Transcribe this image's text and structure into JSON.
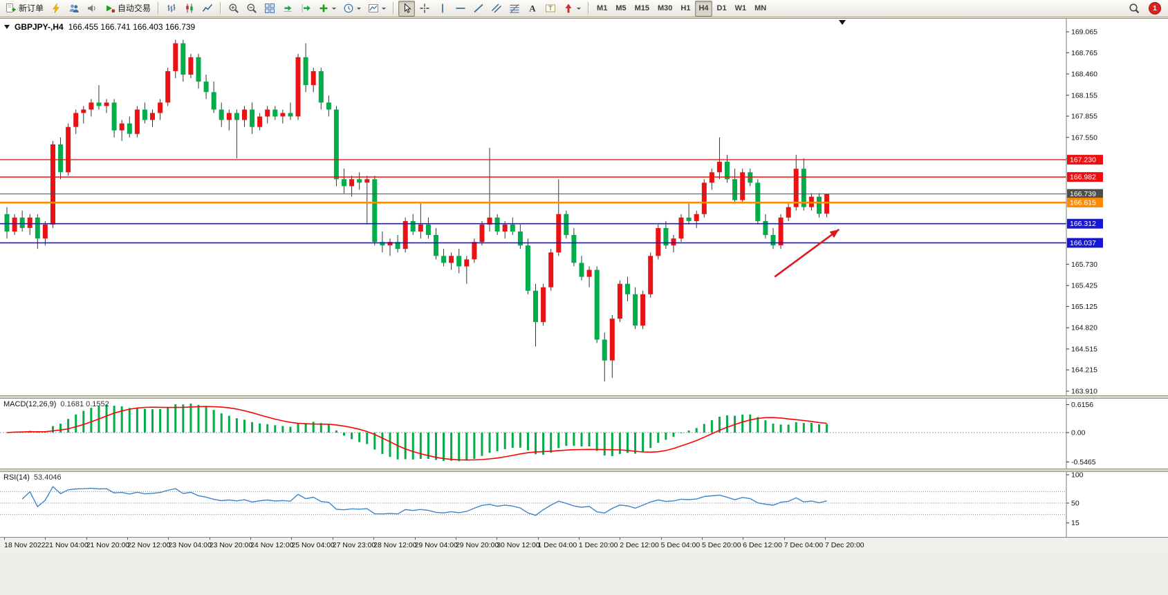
{
  "toolbar": {
    "groups": [
      {
        "name": "trade",
        "items": [
          {
            "name": "new-order-button",
            "icon": "new-order-icon",
            "label": "新订单"
          },
          {
            "name": "expert-advisors-button",
            "icon": "lightning-icon"
          },
          {
            "name": "profiles-button",
            "icon": "profiles-icon"
          },
          {
            "name": "alerts-button",
            "icon": "speaker-icon"
          },
          {
            "name": "auto-trading-button",
            "icon": "play-icon",
            "label": "自动交易"
          }
        ]
      },
      {
        "name": "chart-types",
        "items": [
          {
            "name": "bar-chart-button",
            "icon": "bar-chart-icon"
          },
          {
            "name": "candlestick-chart-button",
            "icon": "candle-chart-icon"
          },
          {
            "name": "line-chart-button",
            "icon": "line-chart-icon"
          }
        ]
      },
      {
        "name": "chart-tools",
        "items": [
          {
            "name": "zoom-in-button",
            "icon": "zoom-in-icon"
          },
          {
            "name": "zoom-out-button",
            "icon": "zoom-out-icon"
          },
          {
            "name": "tile-windows-button",
            "icon": "tile-windows-icon"
          },
          {
            "name": "auto-scroll-button",
            "icon": "auto-scroll-icon"
          },
          {
            "name": "chart-shift-button",
            "icon": "chart-shift-icon"
          },
          {
            "name": "indicators-button",
            "icon": "add-indicator-icon",
            "dropdown": true
          },
          {
            "name": "periods-button",
            "icon": "clock-icon",
            "dropdown": true
          },
          {
            "name": "templates-button",
            "icon": "template-icon",
            "dropdown": true
          }
        ]
      },
      {
        "name": "drawing-tools",
        "items": [
          {
            "name": "cursor-button",
            "icon": "cursor-icon",
            "active": true
          },
          {
            "name": "crosshair-button",
            "icon": "crosshair-icon"
          },
          {
            "name": "vertical-line-button",
            "icon": "vertical-line-icon"
          },
          {
            "name": "horizontal-line-button",
            "icon": "horizontal-line-icon"
          },
          {
            "name": "trendline-button",
            "icon": "trendline-icon"
          },
          {
            "name": "channel-button",
            "icon": "channel-icon"
          },
          {
            "name": "fibonacci-button",
            "icon": "fibonacci-icon"
          },
          {
            "name": "text-button",
            "icon": "text-icon"
          },
          {
            "name": "text-label-button",
            "icon": "text-label-icon"
          },
          {
            "name": "arrows-button",
            "icon": "arrow-icon",
            "dropdown": true
          }
        ]
      },
      {
        "name": "timeframes",
        "items": [
          {
            "name": "timeframe-m1-button",
            "label": "M1",
            "tf": true
          },
          {
            "name": "timeframe-m5-button",
            "label": "M5",
            "tf": true
          },
          {
            "name": "timeframe-m15-button",
            "label": "M15",
            "tf": true
          },
          {
            "name": "timeframe-m30-button",
            "label": "M30",
            "tf": true
          },
          {
            "name": "timeframe-h1-button",
            "label": "H1",
            "tf": true
          },
          {
            "name": "timeframe-h4-button",
            "label": "H4",
            "tf": true,
            "active": true
          },
          {
            "name": "timeframe-d1-button",
            "label": "D1",
            "tf": true
          },
          {
            "name": "timeframe-w1-button",
            "label": "W1",
            "tf": true
          },
          {
            "name": "timeframe-mn-button",
            "label": "MN",
            "tf": true
          }
        ]
      }
    ],
    "right_items": [
      {
        "name": "search-button",
        "icon": "search-icon"
      },
      {
        "name": "notification-badge",
        "label": "1",
        "badge": true
      }
    ]
  },
  "chart_data": [
    {
      "type": "candlestick",
      "title": "GBPJPY-,H4",
      "ohlc_text": "166.455 166.741 166.403 166.739",
      "open": "166.455",
      "high": "166.741",
      "low": "166.403",
      "close": "166.739",
      "y_axis": {
        "min": 163.91,
        "max": 169.065,
        "labels": [
          "169.065",
          "168.765",
          "168.460",
          "168.155",
          "167.855",
          "167.550",
          "167.245",
          "165.730",
          "165.425",
          "165.125",
          "164.820",
          "164.515",
          "164.215",
          "163.910"
        ]
      },
      "hlines": [
        {
          "price": 167.23,
          "label": "167.230",
          "color": "#ee1010",
          "width": 1.4
        },
        {
          "price": 166.982,
          "label": "166.982",
          "color": "#ee1010",
          "width": 1.4
        },
        {
          "price": 166.739,
          "label": "166.739",
          "color": "#4d4d4d",
          "width": 1,
          "role": "bid-price"
        },
        {
          "price": 166.615,
          "label": "166.615",
          "color": "#ff8c00",
          "width": 2.6
        },
        {
          "price": 166.312,
          "label": "166.312",
          "color": "#1616d8",
          "width": 1.6
        },
        {
          "price": 166.037,
          "label": "166.037",
          "color": "#1616d8",
          "width": 1.6
        }
      ],
      "colors": {
        "up": "#ea1212",
        "down": "#00ad48",
        "wick": "#333333"
      },
      "annotation_arrow": {
        "from_bar": 100.2,
        "from_price": 165.55,
        "to_bar": 108.6,
        "to_price": 166.23,
        "color": "#e01818"
      },
      "grid": false,
      "candles": [
        [
          166.45,
          166.55,
          166.1,
          166.2
        ],
        [
          166.2,
          166.45,
          166.15,
          166.4
        ],
        [
          166.4,
          166.5,
          166.2,
          166.25
        ],
        [
          166.25,
          166.45,
          166.15,
          166.4
        ],
        [
          166.4,
          166.45,
          165.95,
          166.1
        ],
        [
          166.1,
          166.35,
          166.0,
          166.3
        ],
        [
          166.3,
          167.5,
          166.25,
          167.45
        ],
        [
          167.45,
          167.55,
          166.95,
          167.05
        ],
        [
          167.05,
          167.75,
          167.0,
          167.7
        ],
        [
          167.7,
          167.95,
          167.6,
          167.9
        ],
        [
          167.9,
          168.0,
          167.75,
          167.95
        ],
        [
          167.95,
          168.1,
          167.85,
          168.05
        ],
        [
          168.05,
          168.3,
          167.95,
          168.0
        ],
        [
          168.0,
          168.1,
          167.9,
          168.05
        ],
        [
          168.05,
          168.1,
          167.55,
          167.65
        ],
        [
          167.65,
          167.8,
          167.5,
          167.75
        ],
        [
          167.75,
          167.85,
          167.55,
          167.6
        ],
        [
          167.6,
          168.0,
          167.55,
          167.95
        ],
        [
          167.95,
          168.05,
          167.75,
          167.8
        ],
        [
          167.8,
          167.95,
          167.7,
          167.9
        ],
        [
          167.9,
          168.1,
          167.8,
          168.05
        ],
        [
          168.05,
          168.55,
          168.0,
          168.5
        ],
        [
          168.5,
          168.95,
          168.4,
          168.9
        ],
        [
          168.9,
          168.95,
          168.35,
          168.45
        ],
        [
          168.45,
          168.75,
          168.4,
          168.7
        ],
        [
          168.7,
          168.75,
          168.25,
          168.35
        ],
        [
          168.35,
          168.45,
          168.1,
          168.2
        ],
        [
          168.2,
          168.35,
          167.9,
          167.95
        ],
        [
          167.95,
          168.05,
          167.7,
          167.8
        ],
        [
          167.8,
          167.95,
          167.65,
          167.9
        ],
        [
          167.9,
          167.95,
          167.25,
          167.8
        ],
        [
          167.8,
          168.0,
          167.7,
          167.95
        ],
        [
          167.95,
          168.05,
          167.6,
          167.7
        ],
        [
          167.7,
          167.9,
          167.65,
          167.85
        ],
        [
          167.85,
          168.0,
          167.75,
          167.95
        ],
        [
          167.95,
          168.0,
          167.8,
          167.85
        ],
        [
          167.85,
          167.95,
          167.75,
          167.9
        ],
        [
          167.9,
          168.05,
          167.8,
          167.85
        ],
        [
          167.85,
          168.75,
          167.8,
          168.7
        ],
        [
          168.7,
          168.9,
          168.2,
          168.3
        ],
        [
          168.3,
          168.55,
          168.2,
          168.5
        ],
        [
          168.5,
          168.55,
          167.95,
          168.05
        ],
        [
          168.05,
          168.15,
          167.85,
          167.95
        ],
        [
          167.95,
          168.0,
          166.85,
          166.95
        ],
        [
          166.95,
          167.1,
          166.75,
          166.85
        ],
        [
          166.85,
          167.0,
          166.7,
          166.95
        ],
        [
          166.95,
          167.05,
          166.8,
          166.9
        ],
        [
          166.9,
          167.0,
          166.3,
          166.95
        ],
        [
          166.95,
          167.0,
          166.0,
          166.05
        ],
        [
          166.05,
          166.2,
          165.9,
          166.0
        ],
        [
          166.0,
          166.1,
          165.85,
          166.05
        ],
        [
          166.05,
          166.15,
          165.9,
          165.95
        ],
        [
          165.95,
          166.4,
          165.9,
          166.35
        ],
        [
          166.35,
          166.45,
          166.15,
          166.2
        ],
        [
          166.2,
          166.6,
          166.1,
          166.3
        ],
        [
          166.3,
          166.4,
          166.1,
          166.15
        ],
        [
          166.15,
          166.25,
          165.8,
          165.85
        ],
        [
          165.85,
          165.95,
          165.7,
          165.75
        ],
        [
          165.75,
          165.9,
          165.65,
          165.85
        ],
        [
          165.85,
          165.95,
          165.6,
          165.7
        ],
        [
          165.7,
          165.85,
          165.45,
          165.8
        ],
        [
          165.8,
          166.1,
          165.75,
          166.05
        ],
        [
          166.05,
          166.35,
          166.0,
          166.3
        ],
        [
          166.3,
          167.4,
          166.2,
          166.4
        ],
        [
          166.4,
          166.45,
          166.15,
          166.2
        ],
        [
          166.2,
          166.35,
          166.1,
          166.3
        ],
        [
          166.3,
          166.4,
          166.15,
          166.2
        ],
        [
          166.2,
          166.3,
          165.95,
          166.0
        ],
        [
          166.0,
          166.1,
          165.3,
          165.35
        ],
        [
          165.35,
          165.45,
          164.55,
          164.9
        ],
        [
          164.9,
          165.45,
          164.85,
          165.4
        ],
        [
          165.4,
          165.95,
          165.35,
          165.9
        ],
        [
          165.9,
          166.95,
          165.85,
          166.45
        ],
        [
          166.45,
          166.5,
          166.1,
          166.15
        ],
        [
          166.15,
          166.25,
          165.7,
          165.75
        ],
        [
          165.75,
          165.85,
          165.5,
          165.55
        ],
        [
          165.55,
          165.7,
          165.4,
          165.65
        ],
        [
          165.65,
          165.7,
          164.6,
          164.65
        ],
        [
          164.65,
          164.75,
          164.05,
          164.35
        ],
        [
          164.35,
          165.0,
          164.1,
          164.95
        ],
        [
          164.95,
          165.5,
          164.9,
          165.45
        ],
        [
          165.45,
          165.55,
          165.2,
          165.3
        ],
        [
          165.3,
          165.4,
          164.8,
          164.85
        ],
        [
          164.85,
          165.35,
          164.8,
          165.3
        ],
        [
          165.3,
          165.9,
          165.25,
          165.85
        ],
        [
          165.85,
          166.3,
          165.8,
          166.25
        ],
        [
          166.25,
          166.35,
          165.95,
          166.0
        ],
        [
          166.0,
          166.15,
          165.9,
          166.1
        ],
        [
          166.1,
          166.45,
          166.05,
          166.4
        ],
        [
          166.4,
          166.6,
          166.3,
          166.35
        ],
        [
          166.35,
          166.5,
          166.25,
          166.45
        ],
        [
          166.45,
          166.95,
          166.4,
          166.9
        ],
        [
          166.9,
          167.1,
          166.8,
          167.05
        ],
        [
          167.05,
          167.55,
          166.95,
          167.2
        ],
        [
          167.2,
          167.3,
          166.9,
          166.95
        ],
        [
          166.95,
          167.1,
          166.6,
          166.65
        ],
        [
          166.65,
          167.1,
          166.6,
          167.05
        ],
        [
          167.05,
          167.1,
          166.85,
          166.9
        ],
        [
          166.9,
          166.95,
          166.3,
          166.35
        ],
        [
          166.35,
          166.45,
          166.1,
          166.15
        ],
        [
          166.15,
          166.25,
          165.95,
          166.0
        ],
        [
          166.0,
          166.45,
          165.95,
          166.4
        ],
        [
          166.4,
          166.6,
          166.35,
          166.55
        ],
        [
          166.55,
          167.3,
          166.5,
          167.1
        ],
        [
          167.1,
          167.25,
          166.5,
          166.55
        ],
        [
          166.55,
          166.75,
          166.5,
          166.7
        ],
        [
          166.7,
          166.75,
          166.4,
          166.455
        ],
        [
          166.455,
          166.741,
          166.403,
          166.739
        ]
      ],
      "time_labels": [
        "18 Nov 2022",
        "21 Nov 04:00",
        "21 Nov 20:00",
        "22 Nov 12:00",
        "23 Nov 04:00",
        "23 Nov 20:00",
        "24 Nov 12:00",
        "25 Nov 04:00",
        "27 Nov 23:00",
        "28 Nov 12:00",
        "29 Nov 04:00",
        "29 Nov 20:00",
        "30 Nov 12:00",
        "1 Dec 04:00",
        "1 Dec 20:00",
        "2 Dec 12:00",
        "5 Dec 04:00",
        "5 Dec 20:00",
        "6 Dec 12:00",
        "7 Dec 04:00",
        "7 Dec 20:00"
      ]
    },
    {
      "type": "macd",
      "label": "MACD(12,26,9)",
      "values_text": "0.1681 0.1552",
      "params": {
        "fast": 12,
        "slow": 26,
        "signal": 9
      },
      "y_axis": {
        "max": 0.6156,
        "min": -0.5465,
        "labels": [
          "0.6156",
          "0.00",
          "-0.5465"
        ]
      },
      "colors": {
        "histogram": "#00ad48",
        "signal": "#ff0000"
      }
    },
    {
      "type": "rsi",
      "label": "RSI(14)",
      "value_text": "53.4046",
      "period": 14,
      "levels": [
        70,
        50,
        30
      ],
      "y_axis": {
        "max": 100,
        "min": 0,
        "labels": [
          "100",
          "50",
          "15"
        ]
      },
      "color": "#3d85c8"
    }
  ]
}
